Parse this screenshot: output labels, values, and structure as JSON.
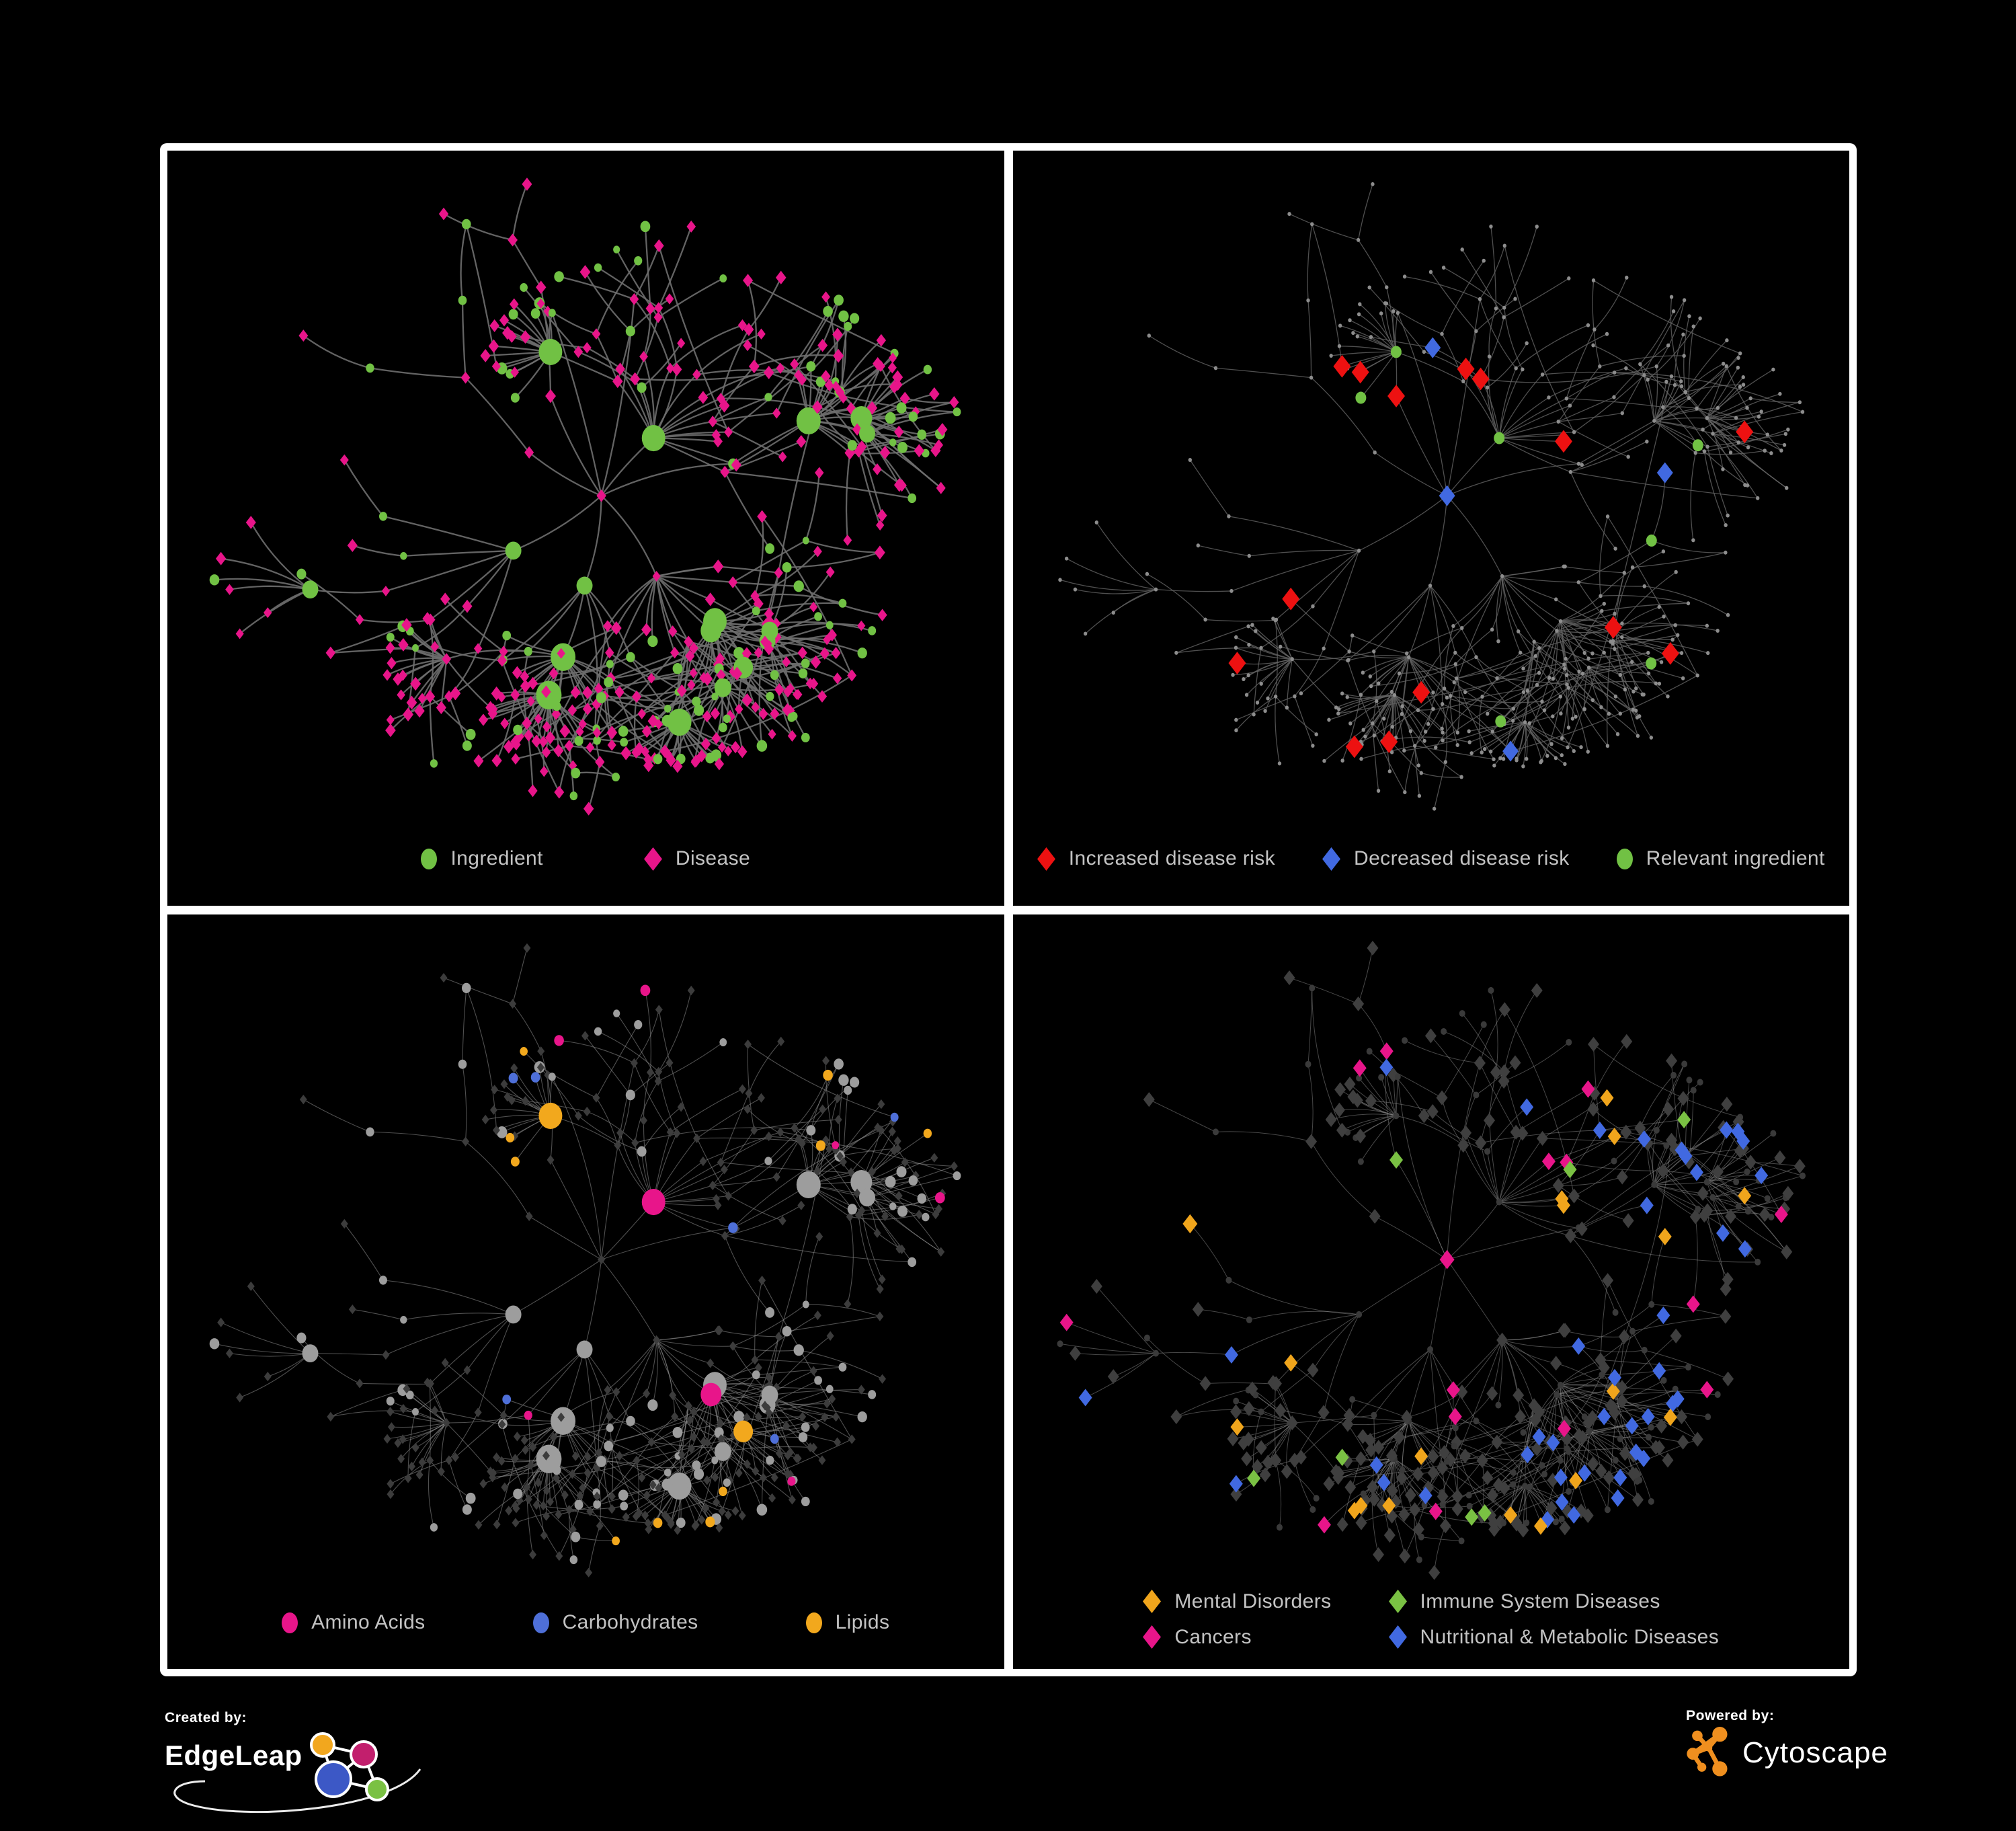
{
  "canvas": {
    "background": "#000000",
    "frame_color": "#ffffff",
    "panel_background": "#000000",
    "legend_text_color": "#c3c3c3"
  },
  "panels": [
    {
      "id": "ingredient-disease",
      "legend": [
        {
          "label": "Ingredient",
          "shape": "circle",
          "color": "#71c144"
        },
        {
          "label": "Disease",
          "shape": "diamond",
          "color": "#e8158a"
        }
      ]
    },
    {
      "id": "disease-risk",
      "legend": [
        {
          "label": "Increased disease risk",
          "shape": "diamond",
          "color": "#ed1111"
        },
        {
          "label": "Decreased disease risk",
          "shape": "diamond",
          "color": "#4169e1"
        },
        {
          "label": "Relevant ingredient",
          "shape": "circle",
          "color": "#71c144"
        }
      ]
    },
    {
      "id": "nutrient-categories",
      "legend": [
        {
          "label": "Amino Acids",
          "shape": "circle",
          "color": "#e8158a"
        },
        {
          "label": "Carbohydrates",
          "shape": "circle",
          "color": "#4e6fd8"
        },
        {
          "label": "Lipids",
          "shape": "circle",
          "color": "#f2a81d"
        }
      ]
    },
    {
      "id": "disease-categories",
      "legend": [
        {
          "label": "Mental Disorders",
          "shape": "diamond",
          "color": "#f0a51c"
        },
        {
          "label": "Cancers",
          "shape": "diamond",
          "color": "#e8158a"
        },
        {
          "label": "Immune System Diseases",
          "shape": "diamond",
          "color": "#7ac143"
        },
        {
          "label": "Nutritional & Metabolic Diseases",
          "shape": "diamond",
          "color": "#4169e1"
        }
      ]
    }
  ],
  "footer": {
    "created_by": {
      "label": "Created by:",
      "brand": "EdgeLeap"
    },
    "powered_by": {
      "label": "Powered by:",
      "brand": "Cytoscape",
      "brand_color": "#ef8f1f"
    }
  },
  "chart_data": {
    "type": "network",
    "description": "Four views of the same ingredient-disease association network rendered with different node colorings",
    "shared_layout": true,
    "node_count": 430,
    "cross_links": 55,
    "seed": 7,
    "node_shapes": {
      "ingredient": "circle",
      "disease": "diamond"
    },
    "views": [
      {
        "id": "ingredient-disease",
        "edge_color": "#6e6e6e",
        "muted_color": null,
        "classes": {
          "ingredient": "#71c144",
          "disease": "#e8158a"
        }
      },
      {
        "id": "disease-risk",
        "edge_color": "#636363",
        "muted_color": "#8d8d8d",
        "classes": {
          "increased_risk": "#ed1111",
          "decreased_risk": "#4169e1",
          "unknown_direction": "#b3b3b3",
          "relevant_ingredient": "#71c144"
        }
      },
      {
        "id": "nutrient-categories",
        "edge_color": "#8f8f8f",
        "muted_color": "#9d9d9d",
        "classes": {
          "amino_acids": "#e8158a",
          "carbohydrates": "#4e6fd8",
          "lipids": "#f2a81d",
          "other_disease": "#3c3c3c"
        }
      },
      {
        "id": "disease-categories",
        "edge_color": "#909090",
        "muted_color": "#3f3f3f",
        "classes": {
          "mental_disorders": "#f0a51c",
          "cancers": "#e8158a",
          "immune_system_diseases": "#7ac143",
          "nutritional_metabolic_diseases": "#4169e1",
          "other_ingredient": "#3a3a3a"
        }
      }
    ]
  }
}
